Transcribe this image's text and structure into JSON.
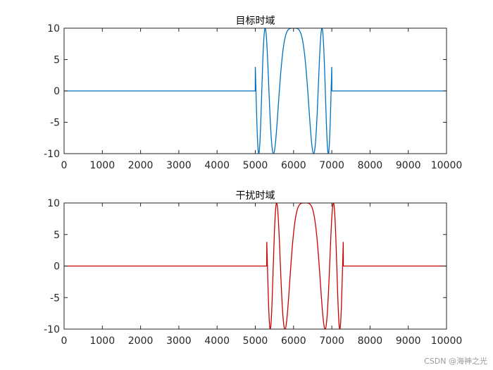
{
  "chart_data": [
    {
      "type": "line",
      "title": "目标时域",
      "xlabel": "",
      "ylabel": "",
      "xlim": [
        0,
        10000
      ],
      "ylim": [
        -10,
        10
      ],
      "xticks": [
        0,
        1000,
        2000,
        3000,
        4000,
        5000,
        6000,
        7000,
        8000,
        9000,
        10000
      ],
      "yticks": [
        10,
        5,
        0,
        -5,
        -10
      ],
      "grid": false,
      "color": "#0072BD",
      "series": [
        {
          "signal": "chirp",
          "baseline": 0,
          "start": 5000,
          "end": 7000,
          "amplitude": 10,
          "samples": [
            [
              5000,
              0
            ],
            [
              5050,
              -10
            ],
            [
              5250,
              10
            ],
            [
              5450,
              -10
            ],
            [
              6000,
              10
            ],
            [
              6550,
              -10
            ],
            [
              6750,
              10
            ],
            [
              6950,
              -10
            ],
            [
              7000,
              0
            ]
          ]
        }
      ]
    },
    {
      "type": "line",
      "title": "干扰时域",
      "xlabel": "",
      "ylabel": "",
      "xlim": [
        0,
        10000
      ],
      "ylim": [
        -10,
        10
      ],
      "xticks": [
        0,
        1000,
        2000,
        3000,
        4000,
        5000,
        6000,
        7000,
        8000,
        9000,
        10000
      ],
      "yticks": [
        10,
        5,
        0,
        -5,
        -10
      ],
      "grid": false,
      "color": "#CC0000",
      "series": [
        {
          "signal": "chirp",
          "baseline": 0,
          "start": 5300,
          "end": 7300,
          "amplitude": 10,
          "samples": [
            [
              5300,
              0
            ],
            [
              5350,
              -10
            ],
            [
              5550,
              10
            ],
            [
              5750,
              -10
            ],
            [
              6300,
              10
            ],
            [
              6850,
              -10
            ],
            [
              7050,
              10
            ],
            [
              7250,
              -10
            ],
            [
              7300,
              0
            ]
          ]
        }
      ]
    }
  ],
  "watermark": "CSDN @海神之光"
}
